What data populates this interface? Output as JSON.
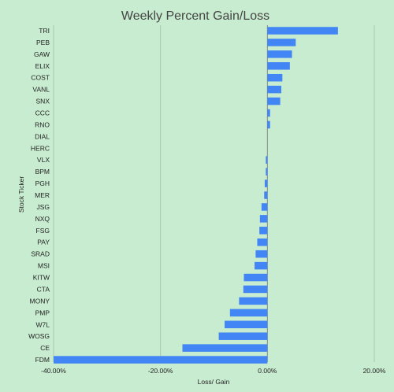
{
  "chart_data": {
    "type": "bar",
    "orientation": "horizontal",
    "title": "Weekly Percent Gain/Loss",
    "xlabel": "Loss/ Gain",
    "ylabel": "Stock Ticker",
    "xlim": [
      -40,
      20
    ],
    "x_ticks": [
      -40,
      -20,
      0,
      20
    ],
    "x_tick_labels": [
      "-40.00%",
      "-20.00%",
      "0.00%",
      "20.00%"
    ],
    "grid": "vertical",
    "bar_color": "#4285f4",
    "categories": [
      "TRI",
      "PEB",
      "GAW",
      "ELIX",
      "COST",
      "VANL",
      "SNX",
      "CCC",
      "RNO",
      "DIAL",
      "HERC",
      "VLX",
      "BPM",
      "PGH",
      "MER",
      "JSG",
      "NXQ",
      "FSG",
      "PAY",
      "SRAD",
      "MSI",
      "KITW",
      "CTA",
      "MONY",
      "PMP",
      "W7L",
      "WOSG",
      "CE",
      "FDM"
    ],
    "values": [
      13.2,
      5.3,
      4.6,
      4.2,
      2.8,
      2.6,
      2.4,
      0.5,
      0.5,
      0.0,
      0.0,
      -0.3,
      -0.3,
      -0.5,
      -0.6,
      -1.1,
      -1.4,
      -1.5,
      -1.9,
      -2.2,
      -2.4,
      -4.4,
      -4.5,
      -5.3,
      -7.0,
      -8.0,
      -9.1,
      -15.9,
      -40.0
    ]
  }
}
